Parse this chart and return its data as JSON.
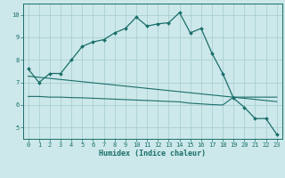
{
  "xlabel": "Humidex (Indice chaleur)",
  "background_color": "#cce8ea",
  "grid_color": "#aacfd2",
  "line_color": "#1a6e6a",
  "xlim": [
    -0.5,
    23.5
  ],
  "ylim": [
    4.5,
    10.5
  ],
  "xticks": [
    0,
    1,
    2,
    3,
    4,
    5,
    6,
    7,
    8,
    9,
    10,
    11,
    12,
    13,
    14,
    15,
    16,
    17,
    18,
    19,
    20,
    21,
    22,
    23
  ],
  "yticks": [
    5,
    6,
    7,
    8,
    9,
    10
  ],
  "line1_x": [
    0,
    1,
    2,
    3,
    4,
    5,
    6,
    7,
    8,
    9,
    10,
    11,
    12,
    13,
    14,
    15,
    16,
    17,
    18,
    19,
    20,
    21,
    22,
    23
  ],
  "line1_y": [
    7.6,
    7.0,
    7.4,
    7.4,
    8.0,
    8.6,
    8.8,
    8.9,
    9.2,
    9.4,
    9.9,
    9.5,
    9.6,
    9.65,
    10.1,
    9.2,
    9.4,
    8.3,
    7.4,
    6.3,
    5.9,
    5.4,
    5.4,
    4.7
  ],
  "line2_x": [
    0,
    1,
    2,
    3,
    4,
    5,
    6,
    7,
    8,
    9,
    10,
    11,
    12,
    13,
    14,
    15,
    16,
    17,
    18,
    19,
    20,
    21,
    22,
    23
  ],
  "line2_y": [
    6.38,
    6.38,
    6.35,
    6.35,
    6.33,
    6.32,
    6.3,
    6.28,
    6.26,
    6.24,
    6.22,
    6.2,
    6.18,
    6.16,
    6.14,
    6.08,
    6.05,
    6.02,
    6.0,
    6.35,
    6.35,
    6.35,
    6.35,
    6.35
  ],
  "line3_x": [
    0,
    23
  ],
  "line3_y": [
    7.28,
    6.15
  ]
}
